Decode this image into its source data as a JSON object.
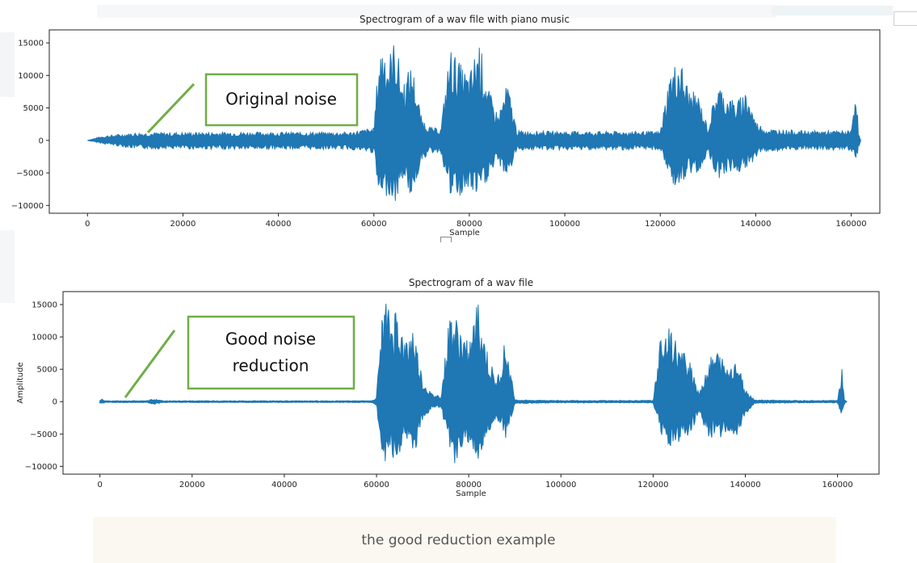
{
  "caption": "the good reduction example",
  "colors": {
    "series": "#1f77b4",
    "annotation": "#70ad47"
  },
  "chart_data": [
    {
      "type": "line",
      "title": "Spectrogram of a wav file with piano music",
      "xlabel": "Sample",
      "ylabel": "",
      "xlim": [
        -8000,
        166000
      ],
      "ylim": [
        -11200,
        17000
      ],
      "xticks": [
        0,
        20000,
        40000,
        60000,
        80000,
        100000,
        120000,
        140000,
        160000
      ],
      "yticks": [
        -10000,
        -5000,
        0,
        5000,
        10000,
        15000
      ],
      "grid": false,
      "legend": "none",
      "annotation": {
        "lines": [
          "Original noise"
        ]
      },
      "envelope": {
        "x": [
          0,
          3000,
          10000,
          30000,
          55000,
          60000,
          61000,
          62000,
          63000,
          64500,
          66000,
          68000,
          70000,
          72000,
          74000,
          76000,
          78000,
          80000,
          82000,
          84000,
          86000,
          88000,
          90000,
          100000,
          120000,
          122000,
          124000,
          126000,
          128000,
          130000,
          132000,
          134000,
          136000,
          138000,
          140000,
          142000,
          150000,
          160000,
          161000,
          161500,
          162000
        ],
        "max": [
          0,
          700,
          1200,
          1300,
          1300,
          2000,
          13000,
          16000,
          13000,
          16000,
          9000,
          12000,
          3500,
          2000,
          1800,
          14500,
          12000,
          10000,
          16000,
          8000,
          4000,
          9000,
          1500,
          1400,
          1400,
          10500,
          13000,
          8000,
          7000,
          2000,
          9000,
          7000,
          6000,
          8000,
          3000,
          1800,
          1500,
          1500,
          9500,
          1200,
          0
        ],
        "min": [
          0,
          -500,
          -1300,
          -1400,
          -1400,
          -2000,
          -9000,
          -10000,
          -8000,
          -10000,
          -6000,
          -9000,
          -3000,
          -2000,
          -1800,
          -9000,
          -9000,
          -8000,
          -9000,
          -6000,
          -3500,
          -6000,
          -1500,
          -1500,
          -1500,
          -6000,
          -8000,
          -5500,
          -5000,
          -2000,
          -6000,
          -5000,
          -5000,
          -5000,
          -2500,
          -1800,
          -1500,
          -1500,
          -3500,
          -1200,
          0
        ]
      }
    },
    {
      "type": "line",
      "title": "Spectrogram of a wav file",
      "xlabel": "Sample",
      "ylabel": "Amplitude",
      "xlim": [
        -8000,
        169000
      ],
      "ylim": [
        -11200,
        17000
      ],
      "xticks": [
        0,
        20000,
        40000,
        60000,
        80000,
        100000,
        120000,
        140000,
        160000
      ],
      "yticks": [
        -10000,
        -5000,
        0,
        5000,
        10000,
        15000
      ],
      "grid": false,
      "legend": "none",
      "annotation": {
        "lines": [
          "Good noise",
          "reduction"
        ]
      },
      "envelope": {
        "x": [
          0,
          500,
          1000,
          10000,
          12000,
          14000,
          30000,
          59000,
          60000,
          61000,
          62000,
          63000,
          64500,
          66000,
          68000,
          70000,
          72000,
          74000,
          76000,
          78000,
          80000,
          82000,
          84000,
          86000,
          88000,
          90000,
          100000,
          120000,
          122000,
          124000,
          126000,
          128000,
          130000,
          132000,
          134000,
          136000,
          138000,
          140000,
          142000,
          150000,
          160000,
          161000,
          161500,
          162000
        ],
        "max": [
          300,
          400,
          150,
          150,
          450,
          150,
          150,
          150,
          800,
          12000,
          16000,
          13000,
          15500,
          9000,
          12000,
          3500,
          1200,
          1000,
          14500,
          12000,
          9000,
          16000,
          8000,
          3000,
          10000,
          300,
          200,
          200,
          12500,
          11000,
          8000,
          7000,
          1500,
          6500,
          8000,
          5500,
          7000,
          2000,
          300,
          200,
          200,
          5500,
          300,
          0
        ],
        "min": [
          -300,
          -400,
          -150,
          -150,
          -450,
          -150,
          -150,
          -150,
          -800,
          -8000,
          -10000,
          -8000,
          -10000,
          -6000,
          -9000,
          -3000,
          -1200,
          -1000,
          -10000,
          -9000,
          -7000,
          -9000,
          -6000,
          -3000,
          -6000,
          -300,
          -200,
          -200,
          -6000,
          -8000,
          -6000,
          -5500,
          -1500,
          -6000,
          -6000,
          -5000,
          -6000,
          -2000,
          -300,
          -200,
          -200,
          -3000,
          -300,
          0
        ]
      }
    }
  ]
}
